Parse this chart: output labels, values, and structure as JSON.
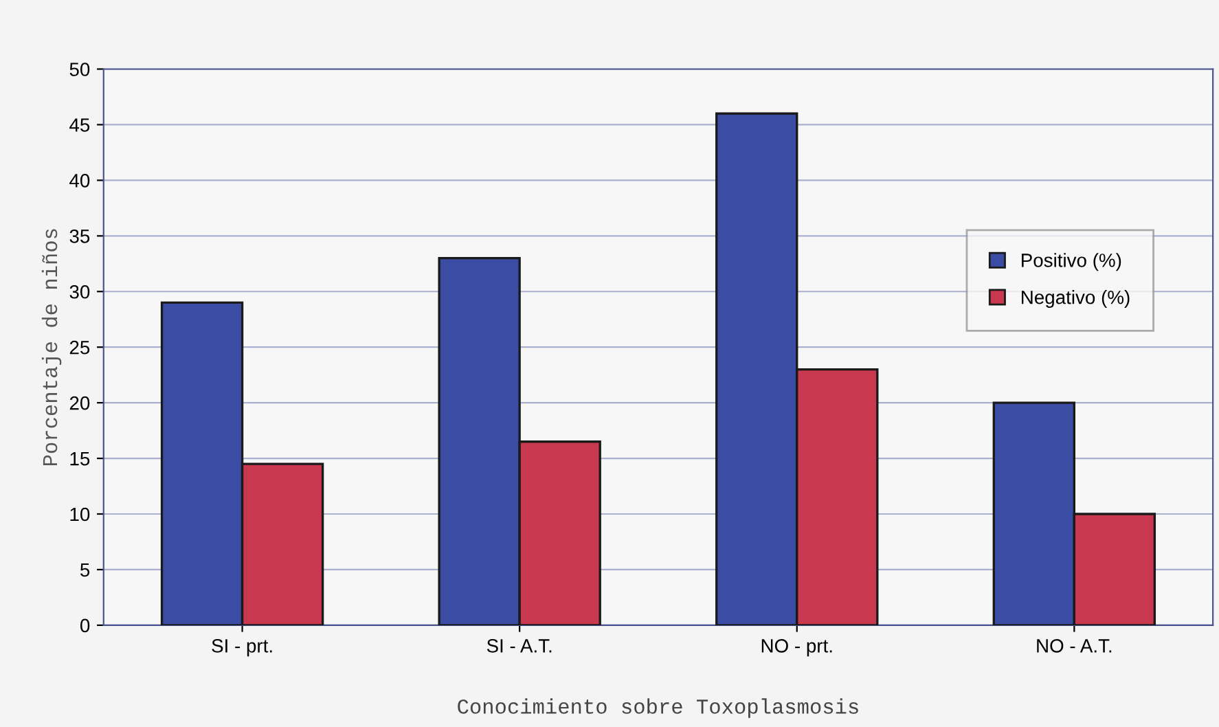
{
  "chart_data": {
    "type": "bar",
    "xlabel": "Conocimiento sobre Toxoplasmosis",
    "ylabel": "Porcentaje de niños",
    "categories": [
      "SI - prt.",
      "SI - A.T.",
      "NO - prt.",
      "NO - A.T."
    ],
    "series": [
      {
        "name": "Positivo (%)",
        "color": "#3a4ca4",
        "values": [
          29,
          33,
          46,
          20
        ]
      },
      {
        "name": "Negativo (%)",
        "color": "#c8394f",
        "values": [
          14.5,
          16.5,
          23,
          10
        ]
      }
    ],
    "ylim": [
      0,
      50
    ],
    "yticks": [
      0,
      5,
      10,
      15,
      20,
      25,
      30,
      35,
      40,
      45,
      50
    ],
    "grid": "y",
    "legend": "right"
  }
}
